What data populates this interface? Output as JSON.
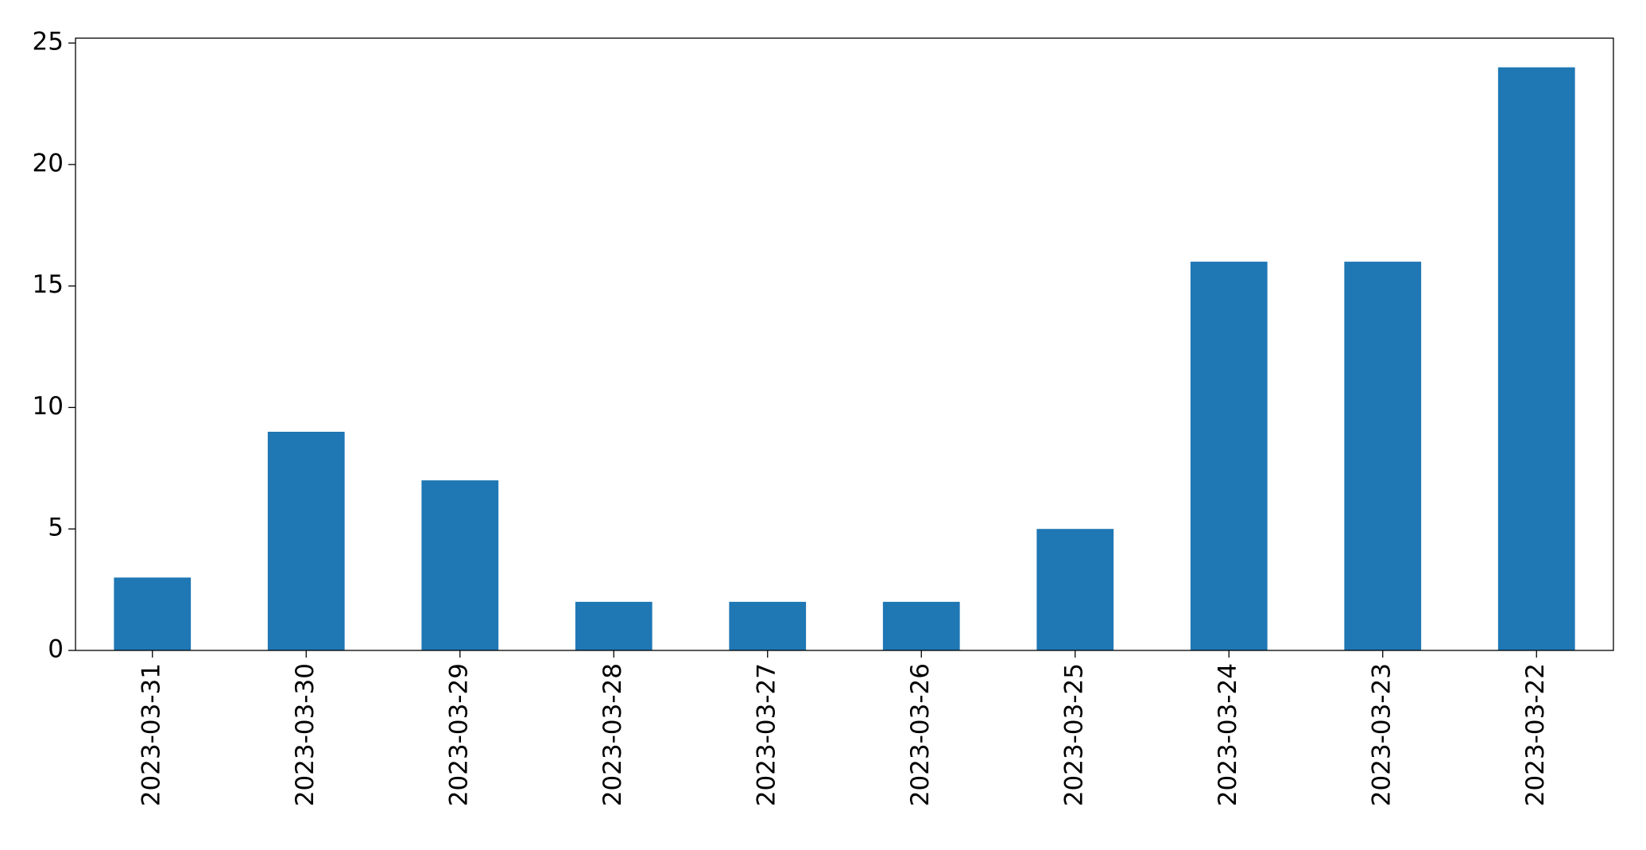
{
  "chart_data": {
    "type": "bar",
    "categories": [
      "2023-03-31",
      "2023-03-30",
      "2023-03-29",
      "2023-03-28",
      "2023-03-27",
      "2023-03-26",
      "2023-03-25",
      "2023-03-24",
      "2023-03-23",
      "2023-03-22"
    ],
    "values": [
      3,
      9,
      7,
      2,
      2,
      2,
      5,
      16,
      16,
      24
    ],
    "color": "#1f77b4",
    "ylim": [
      0,
      25.2
    ],
    "yticks": [
      0,
      5,
      10,
      15,
      20,
      25
    ],
    "grid": false
  }
}
